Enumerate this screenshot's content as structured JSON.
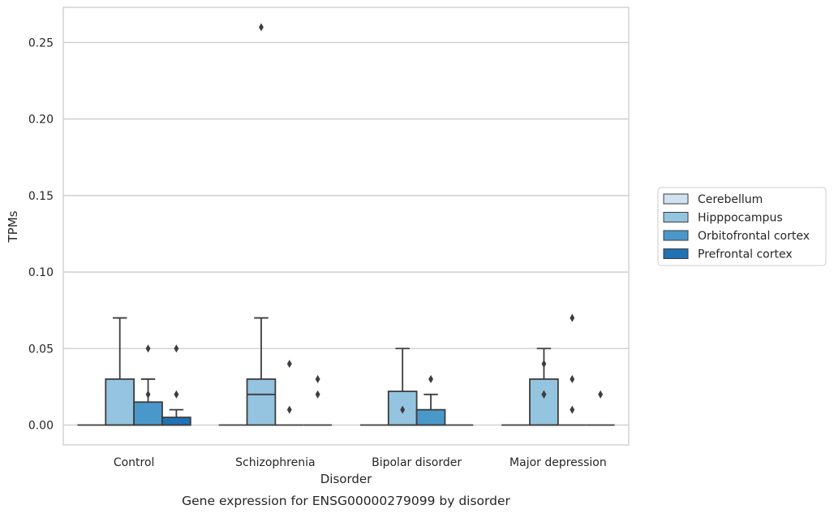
{
  "chart_data": {
    "type": "box",
    "title": "Gene expression for ENSG00000279099 by disorder",
    "xlabel": "Disorder",
    "ylabel": "TPMs",
    "categories": [
      "Control",
      "Schizophrenia",
      "Bipolar disorder",
      "Major depression"
    ],
    "ylim": [
      -0.013,
      0.273
    ],
    "yticks": [
      0.0,
      0.05,
      0.1,
      0.15,
      0.2,
      0.25
    ],
    "ytick_labels": [
      "0.00",
      "0.05",
      "0.10",
      "0.15",
      "0.20",
      "0.25"
    ],
    "grid": true,
    "legend_position": "right",
    "series": [
      {
        "name": "Cerebellum",
        "color": "#d0e1f2",
        "boxes": [
          {
            "category": "Control",
            "q1": 0,
            "median": 0,
            "q3": 0,
            "whisker_low": 0,
            "whisker_high": 0,
            "outliers": []
          },
          {
            "category": "Schizophrenia",
            "q1": 0,
            "median": 0,
            "q3": 0,
            "whisker_low": 0,
            "whisker_high": 0,
            "outliers": []
          },
          {
            "category": "Bipolar disorder",
            "q1": 0,
            "median": 0,
            "q3": 0,
            "whisker_low": 0,
            "whisker_high": 0,
            "outliers": []
          },
          {
            "category": "Major depression",
            "q1": 0,
            "median": 0,
            "q3": 0,
            "whisker_low": 0,
            "whisker_high": 0,
            "outliers": []
          }
        ]
      },
      {
        "name": "Hipppocampus",
        "color": "#94c4df",
        "boxes": [
          {
            "category": "Control",
            "q1": 0,
            "median": 0,
            "q3": 0.03,
            "whisker_low": 0,
            "whisker_high": 0.07,
            "outliers": []
          },
          {
            "category": "Schizophrenia",
            "q1": 0,
            "median": 0.02,
            "q3": 0.03,
            "whisker_low": 0,
            "whisker_high": 0.07,
            "outliers": [
              0.26
            ]
          },
          {
            "category": "Bipolar disorder",
            "q1": 0,
            "median": 0,
            "q3": 0.022,
            "whisker_low": 0,
            "whisker_high": 0.05,
            "outliers": [
              0.01
            ]
          },
          {
            "category": "Major depression",
            "q1": 0,
            "median": 0,
            "q3": 0.03,
            "whisker_low": 0,
            "whisker_high": 0.05,
            "outliers": [
              0.04,
              0.02,
              0.02
            ]
          }
        ]
      },
      {
        "name": "Orbitofrontal cortex",
        "color": "#4a98c9",
        "boxes": [
          {
            "category": "Control",
            "q1": 0,
            "median": 0,
            "q3": 0.015,
            "whisker_low": 0,
            "whisker_high": 0.03,
            "outliers": [
              0.05,
              0.02
            ]
          },
          {
            "category": "Schizophrenia",
            "q1": 0,
            "median": 0,
            "q3": 0,
            "whisker_low": 0,
            "whisker_high": 0,
            "outliers": [
              0.04,
              0.01
            ]
          },
          {
            "category": "Bipolar disorder",
            "q1": 0,
            "median": 0,
            "q3": 0.01,
            "whisker_low": 0,
            "whisker_high": 0.02,
            "outliers": [
              0.03
            ]
          },
          {
            "category": "Major depression",
            "q1": 0,
            "median": 0,
            "q3": 0,
            "whisker_low": 0,
            "whisker_high": 0,
            "outliers": [
              0.07,
              0.03,
              0.01
            ]
          }
        ]
      },
      {
        "name": "Prefrontal cortex",
        "color": "#2171b5",
        "boxes": [
          {
            "category": "Control",
            "q1": 0,
            "median": 0,
            "q3": 0.005,
            "whisker_low": 0,
            "whisker_high": 0.01,
            "outliers": [
              0.05,
              0.02
            ]
          },
          {
            "category": "Schizophrenia",
            "q1": 0,
            "median": 0,
            "q3": 0,
            "whisker_low": 0,
            "whisker_high": 0,
            "outliers": [
              0.03,
              0.02
            ]
          },
          {
            "category": "Bipolar disorder",
            "q1": 0,
            "median": 0,
            "q3": 0,
            "whisker_low": 0,
            "whisker_high": 0,
            "outliers": []
          },
          {
            "category": "Major depression",
            "q1": 0,
            "median": 0,
            "q3": 0,
            "whisker_low": 0,
            "whisker_high": 0,
            "outliers": [
              0.02
            ]
          }
        ]
      }
    ]
  }
}
